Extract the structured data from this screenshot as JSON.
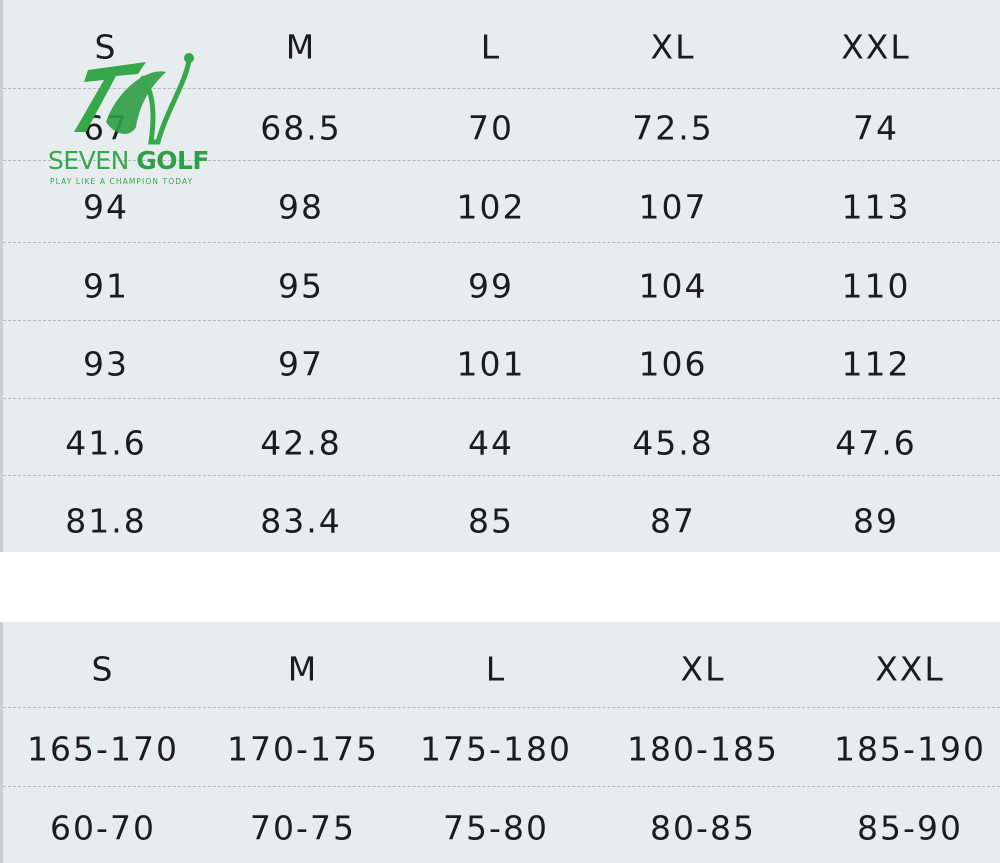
{
  "logo": {
    "name_light": "SEVEN",
    "name_bold": "GOLF",
    "tagline": "PLAY LIKE A CHAMPION TODAY",
    "color": "#35a84a"
  },
  "table1": {
    "headers": [
      "S",
      "M",
      "L",
      "XL",
      "XXL"
    ],
    "rows": [
      [
        "67",
        "68.5",
        "70",
        "72.5",
        "74"
      ],
      [
        "94",
        "98",
        "102",
        "107",
        "113"
      ],
      [
        "91",
        "95",
        "99",
        "104",
        "110"
      ],
      [
        "93",
        "97",
        "101",
        "106",
        "112"
      ],
      [
        "41.6",
        "42.8",
        "44",
        "45.8",
        "47.6"
      ],
      [
        "81.8",
        "83.4",
        "85",
        "87",
        "89"
      ]
    ]
  },
  "table2": {
    "headers": [
      "S",
      "M",
      "L",
      "XL",
      "XXL"
    ],
    "rows": [
      [
        "165-170",
        "170-175",
        "175-180",
        "180-185",
        "185-190"
      ],
      [
        "60-70",
        "70-75",
        "75-80",
        "80-85",
        "85-90"
      ]
    ]
  }
}
